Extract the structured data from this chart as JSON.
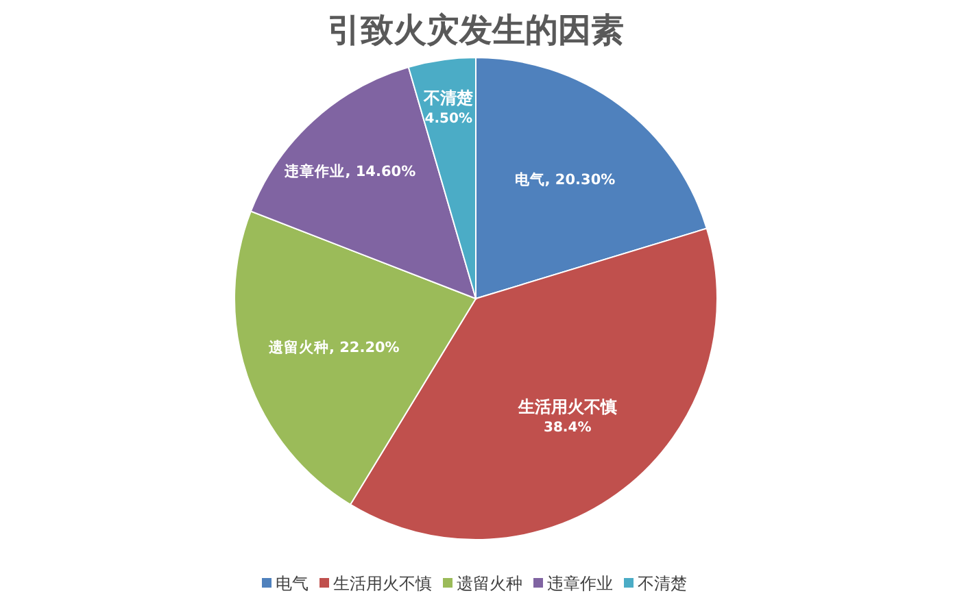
{
  "chart_data": {
    "type": "pie",
    "title": "引致火灾发生的因素",
    "categories": [
      "电气",
      "生活用火不慎",
      "遗留火种",
      "违章作业",
      "不清楚"
    ],
    "values": [
      20.3,
      38.4,
      22.2,
      14.6,
      4.5
    ],
    "value_labels": [
      "电气, 20.30%",
      "生活用火不慎 38.4%",
      "遗留火种, 22.20%",
      "违章作业, 14.60%",
      "不清楚 4.50%"
    ],
    "colors": [
      "#4f81bd",
      "#c0504d",
      "#9bbb59",
      "#8064a2",
      "#4bacc6"
    ],
    "legend": "bottom"
  }
}
